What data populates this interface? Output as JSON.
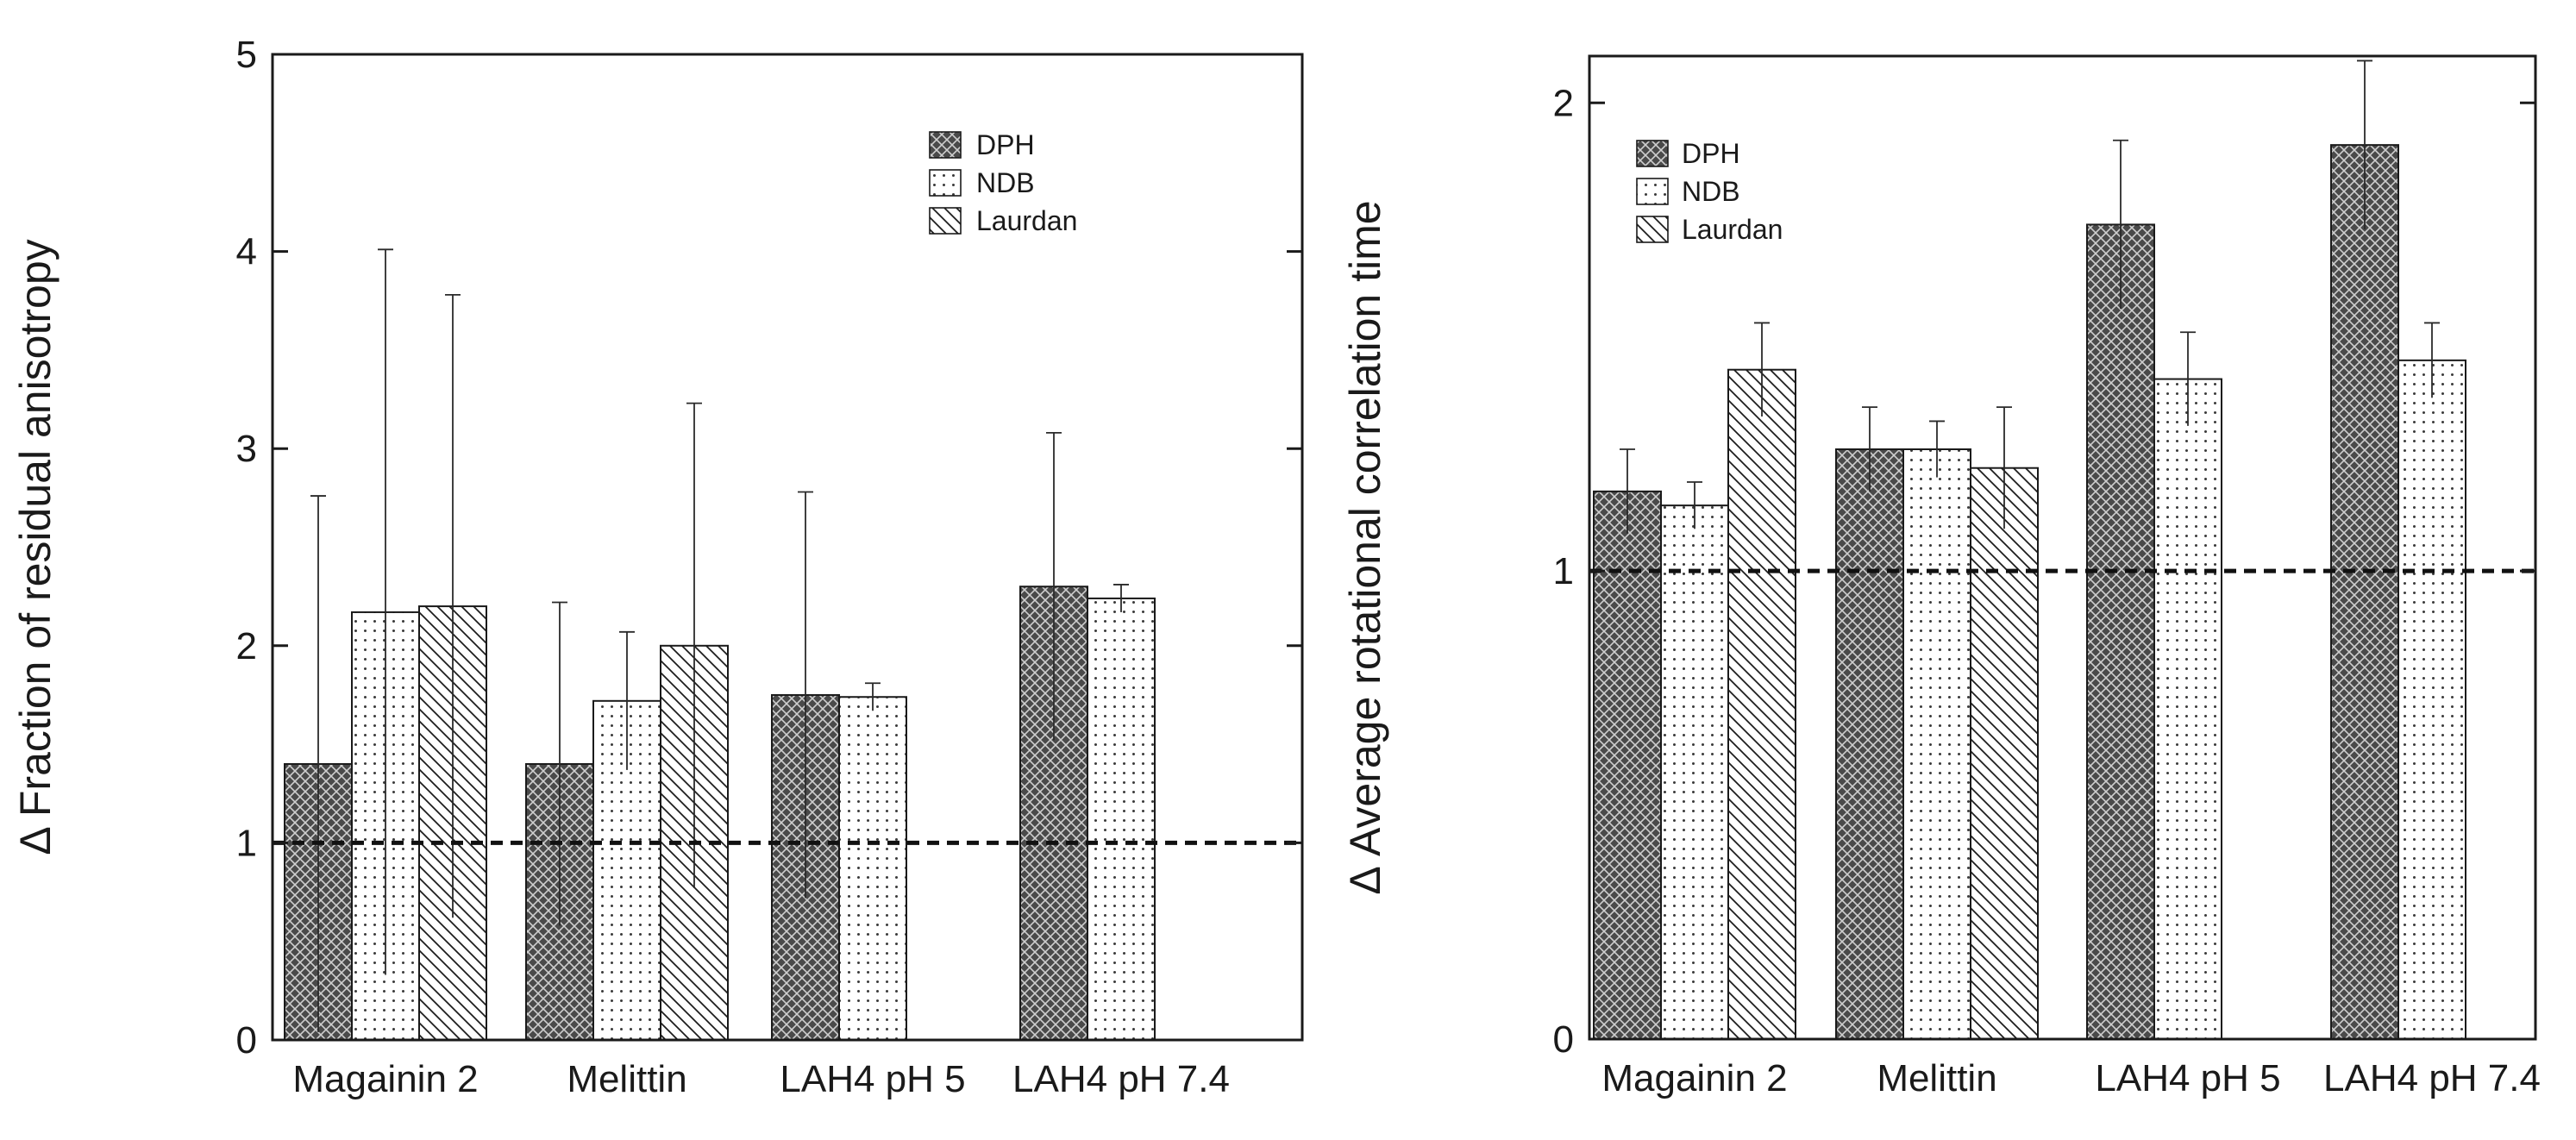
{
  "chart_data": [
    {
      "type": "bar",
      "title": "",
      "xlabel": "",
      "ylabel": "Δ Fraction of residual anisotropy",
      "ylim": [
        0,
        5
      ],
      "yticks": [
        0,
        1,
        2,
        3,
        4,
        5
      ],
      "grid": false,
      "legend_position": "top-right",
      "reference_line": 1,
      "categories": [
        "Magainin 2",
        "Melittin",
        "LAH4 pH 5",
        "LAH4 pH 7.4"
      ],
      "series": [
        {
          "name": "DPH",
          "pattern": "crosshatch",
          "values": [
            1.4,
            1.4,
            1.75,
            2.3
          ],
          "errors": [
            1.36,
            0.82,
            1.03,
            0.78
          ]
        },
        {
          "name": "NDB",
          "pattern": "dots",
          "values": [
            2.17,
            1.72,
            1.74,
            2.24
          ],
          "errors": [
            1.84,
            0.35,
            0.07,
            0.07
          ]
        },
        {
          "name": "Laurdan",
          "pattern": "diagonal",
          "values": [
            2.2,
            2.0,
            null,
            null
          ],
          "errors": [
            1.58,
            1.23,
            null,
            null
          ]
        }
      ]
    },
    {
      "type": "bar",
      "title": "",
      "xlabel": "",
      "ylabel": "Δ Average rotational correlation time",
      "ylim": [
        0,
        2.1
      ],
      "yticks": [
        0,
        1,
        2
      ],
      "grid": false,
      "legend_position": "top-left",
      "reference_line": 1,
      "categories": [
        "Magainin 2",
        "Melittin",
        "LAH4 pH 5",
        "LAH4 pH 7.4"
      ],
      "series": [
        {
          "name": "DPH",
          "pattern": "crosshatch",
          "values": [
            1.17,
            1.26,
            1.74,
            1.91
          ],
          "errors": [
            0.09,
            0.09,
            0.18,
            0.18
          ]
        },
        {
          "name": "NDB",
          "pattern": "dots",
          "values": [
            1.14,
            1.26,
            1.41,
            1.45
          ],
          "errors": [
            0.05,
            0.06,
            0.1,
            0.08
          ]
        },
        {
          "name": "Laurdan",
          "pattern": "diagonal",
          "values": [
            1.43,
            1.22,
            null,
            null
          ],
          "errors": [
            0.1,
            0.13,
            null,
            null
          ]
        }
      ]
    }
  ]
}
